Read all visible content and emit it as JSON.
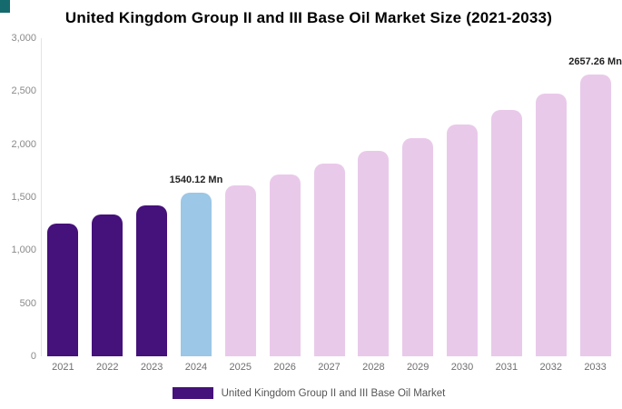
{
  "title": "United Kingdom Group II and III Base Oil Market Size (2021-2033)",
  "corner_accent_color": "#156a6e",
  "legend": {
    "label": "United Kingdom Group II and III Base Oil Market",
    "swatch_color": "#45117a"
  },
  "chart_data": {
    "type": "bar",
    "title": "United Kingdom Group II and III Base Oil Market Size (2021-2033)",
    "xlabel": "",
    "ylabel": "",
    "ylim": [
      0,
      3000
    ],
    "grid": false,
    "legend_position": "bottom",
    "categories": [
      "2021",
      "2022",
      "2023",
      "2024",
      "2025",
      "2026",
      "2027",
      "2028",
      "2029",
      "2030",
      "2031",
      "2032",
      "2033"
    ],
    "values": [
      1250,
      1335,
      1420,
      1540.12,
      1610,
      1715,
      1815,
      1935,
      2055,
      2190,
      2325,
      2475,
      2657.26
    ],
    "bar_roles": [
      "historical",
      "historical",
      "historical",
      "highlight",
      "forecast",
      "forecast",
      "forecast",
      "forecast",
      "forecast",
      "forecast",
      "forecast",
      "forecast",
      "forecast"
    ],
    "colors": {
      "historical": "#45117a",
      "highlight": "#9cc7e6",
      "forecast": "#e9c9ea"
    },
    "point_labels": {
      "2024": "1540.12 Mn",
      "2033": "2657.26 Mn"
    },
    "ytick_values": [
      0,
      500,
      1000,
      1500,
      2000,
      2500,
      3000
    ],
    "ytick_labels": [
      "0",
      "500",
      "1,000",
      "1,500",
      "2,000",
      "2,500",
      "3,000"
    ]
  }
}
